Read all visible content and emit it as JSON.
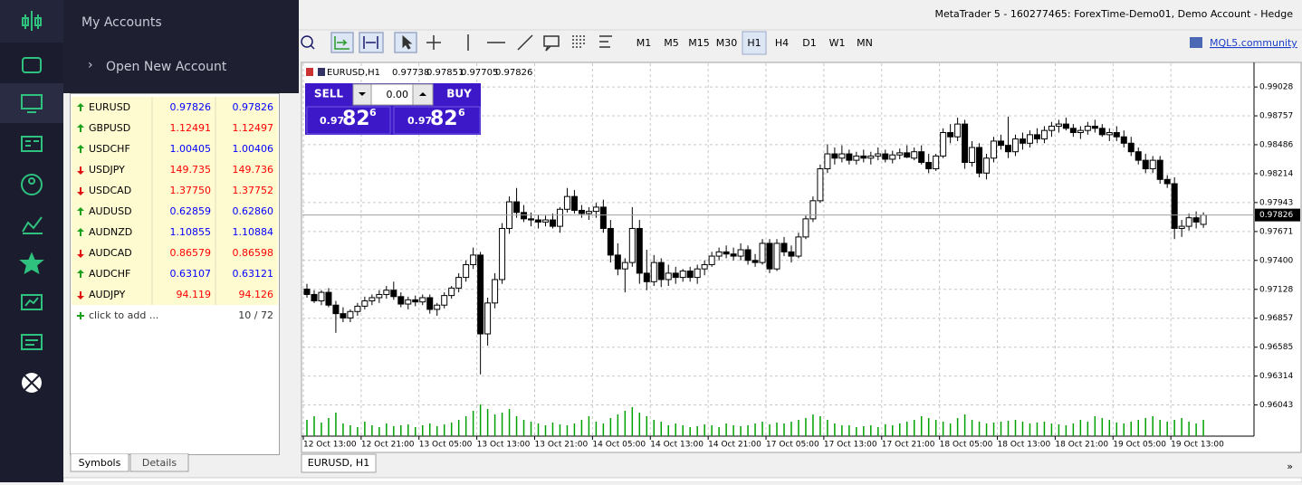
{
  "window_title": "MetaTrader 5 - 160277465: ForexTime-Demo01, Demo Account - Hedge",
  "menu": {
    "title": "My Accounts",
    "item": "Open New Account"
  },
  "toolbar": {
    "timeframes": [
      "M1",
      "M5",
      "M15",
      "M30",
      "H1",
      "H4",
      "D1",
      "W1",
      "MN"
    ],
    "selected_index": 4,
    "link": "MQL5.community"
  },
  "market_watch": {
    "rows": [
      {
        "symbol": "EURUSD",
        "bid": "0.97826",
        "ask": "0.97826",
        "trend": "up",
        "color": "#0000ff"
      },
      {
        "symbol": "GBPUSD",
        "bid": "1.12491",
        "ask": "1.12497",
        "trend": "up",
        "color": "#ff0000"
      },
      {
        "symbol": "USDCHF",
        "bid": "1.00405",
        "ask": "1.00406",
        "trend": "up",
        "color": "#0000ff"
      },
      {
        "symbol": "USDJPY",
        "bid": "149.735",
        "ask": "149.736",
        "trend": "down",
        "color": "#ff0000"
      },
      {
        "symbol": "USDCAD",
        "bid": "1.37750",
        "ask": "1.37752",
        "trend": "down",
        "color": "#ff0000"
      },
      {
        "symbol": "AUDUSD",
        "bid": "0.62859",
        "ask": "0.62860",
        "trend": "up",
        "color": "#0000ff"
      },
      {
        "symbol": "AUDNZD",
        "bid": "1.10855",
        "ask": "1.10884",
        "trend": "up",
        "color": "#0000ff"
      },
      {
        "symbol": "AUDCAD",
        "bid": "0.86579",
        "ask": "0.86598",
        "trend": "down",
        "color": "#ff0000"
      },
      {
        "symbol": "AUDCHF",
        "bid": "0.63107",
        "ask": "0.63121",
        "trend": "up",
        "color": "#0000ff"
      },
      {
        "symbol": "AUDJPY",
        "bid": "94.119",
        "ask": "94.126",
        "trend": "down",
        "color": "#ff0000"
      }
    ],
    "add_label": "click to add ...",
    "count": "10 / 72",
    "tabs": [
      "Symbols",
      "Details"
    ]
  },
  "trade_panel": {
    "sell": "SELL",
    "buy": "BUY",
    "volume": "0.00",
    "sell_price": [
      "0.97",
      "82",
      "6"
    ],
    "buy_price": [
      "0.97",
      "82",
      "6"
    ]
  },
  "chart_tab": "EURUSD, H1",
  "scroll_mark": "»",
  "chart_data": {
    "type": "candlestick",
    "title": "EURUSD,H1",
    "ohlc_header": [
      0.97738,
      0.97851,
      0.97705,
      0.97826
    ],
    "candles": [
      [
        0.9713,
        0.9718,
        0.9705,
        0.9708
      ],
      [
        0.9708,
        0.9712,
        0.97,
        0.9702
      ],
      [
        0.9702,
        0.9712,
        0.9698,
        0.971
      ],
      [
        0.971,
        0.9714,
        0.9696,
        0.9698
      ],
      [
        0.9698,
        0.9702,
        0.9672,
        0.969
      ],
      [
        0.969,
        0.9696,
        0.9682,
        0.9686
      ],
      [
        0.9686,
        0.9694,
        0.9682,
        0.9692
      ],
      [
        0.9692,
        0.97,
        0.9688,
        0.9697
      ],
      [
        0.9697,
        0.9706,
        0.9694,
        0.9702
      ],
      [
        0.9702,
        0.9708,
        0.9698,
        0.9705
      ],
      [
        0.9705,
        0.9712,
        0.97,
        0.9708
      ],
      [
        0.9708,
        0.9716,
        0.9704,
        0.9712
      ],
      [
        0.9712,
        0.972,
        0.9703,
        0.9706
      ],
      [
        0.9706,
        0.971,
        0.9696,
        0.9699
      ],
      [
        0.9699,
        0.9706,
        0.9694,
        0.9703
      ],
      [
        0.9703,
        0.9707,
        0.9697,
        0.9701
      ],
      [
        0.9701,
        0.9708,
        0.9698,
        0.9705
      ],
      [
        0.9705,
        0.9708,
        0.969,
        0.9694
      ],
      [
        0.9694,
        0.97,
        0.9688,
        0.9698
      ],
      [
        0.9698,
        0.971,
        0.9695,
        0.9707
      ],
      [
        0.9707,
        0.9716,
        0.9704,
        0.9714
      ],
      [
        0.9714,
        0.9728,
        0.971,
        0.9724
      ],
      [
        0.9724,
        0.974,
        0.972,
        0.9736
      ],
      [
        0.9736,
        0.9752,
        0.9732,
        0.9745
      ],
      [
        0.9745,
        0.9748,
        0.9633,
        0.9671
      ],
      [
        0.9671,
        0.9705,
        0.966,
        0.97
      ],
      [
        0.97,
        0.9728,
        0.9695,
        0.9722
      ],
      [
        0.9722,
        0.9775,
        0.9718,
        0.977
      ],
      [
        0.977,
        0.98,
        0.9765,
        0.9795
      ],
      [
        0.9795,
        0.9808,
        0.978,
        0.9785
      ],
      [
        0.9785,
        0.9792,
        0.9776,
        0.9779
      ],
      [
        0.9779,
        0.9785,
        0.9772,
        0.9778
      ],
      [
        0.9778,
        0.9783,
        0.977,
        0.9776
      ],
      [
        0.9776,
        0.9782,
        0.9772,
        0.9778
      ],
      [
        0.9778,
        0.9784,
        0.977,
        0.9772
      ],
      [
        0.9772,
        0.979,
        0.9766,
        0.9788
      ],
      [
        0.9788,
        0.9808,
        0.9785,
        0.98
      ],
      [
        0.98,
        0.9806,
        0.9784,
        0.9787
      ],
      [
        0.9787,
        0.9792,
        0.978,
        0.9784
      ],
      [
        0.9784,
        0.979,
        0.9778,
        0.9786
      ],
      [
        0.9786,
        0.9794,
        0.978,
        0.979
      ],
      [
        0.979,
        0.9797,
        0.9766,
        0.977
      ],
      [
        0.977,
        0.9778,
        0.9738,
        0.9745
      ],
      [
        0.9745,
        0.9756,
        0.9726,
        0.9732
      ],
      [
        0.9732,
        0.9742,
        0.971,
        0.9738
      ],
      [
        0.9738,
        0.979,
        0.9734,
        0.977
      ],
      [
        0.977,
        0.9778,
        0.9718,
        0.9728
      ],
      [
        0.9728,
        0.975,
        0.9712,
        0.972
      ],
      [
        0.972,
        0.9745,
        0.9716,
        0.9738
      ],
      [
        0.9738,
        0.9742,
        0.9715,
        0.9722
      ],
      [
        0.9722,
        0.9736,
        0.9716,
        0.9728
      ],
      [
        0.9728,
        0.9734,
        0.9718,
        0.9724
      ],
      [
        0.9724,
        0.9732,
        0.972,
        0.973
      ],
      [
        0.973,
        0.9734,
        0.972,
        0.9724
      ],
      [
        0.9724,
        0.9736,
        0.9718,
        0.9732
      ],
      [
        0.9732,
        0.974,
        0.9726,
        0.9736
      ],
      [
        0.9736,
        0.9748,
        0.9734,
        0.9744
      ],
      [
        0.9744,
        0.9752,
        0.974,
        0.9748
      ],
      [
        0.9748,
        0.9754,
        0.9742,
        0.9746
      ],
      [
        0.9746,
        0.9752,
        0.974,
        0.9744
      ],
      [
        0.9744,
        0.9756,
        0.974,
        0.975
      ],
      [
        0.975,
        0.9754,
        0.9736,
        0.974
      ],
      [
        0.974,
        0.9746,
        0.9734,
        0.9738
      ],
      [
        0.9738,
        0.976,
        0.9736,
        0.9756
      ],
      [
        0.9756,
        0.976,
        0.9728,
        0.9732
      ],
      [
        0.9732,
        0.976,
        0.973,
        0.9756
      ],
      [
        0.9756,
        0.9762,
        0.9744,
        0.9748
      ],
      [
        0.9748,
        0.9754,
        0.9738,
        0.9744
      ],
      [
        0.9744,
        0.9766,
        0.9742,
        0.9762
      ],
      [
        0.9762,
        0.9782,
        0.976,
        0.9779
      ],
      [
        0.9779,
        0.98,
        0.9776,
        0.9796
      ],
      [
        0.9796,
        0.983,
        0.9794,
        0.9826
      ],
      [
        0.9826,
        0.9849,
        0.9822,
        0.984
      ],
      [
        0.984,
        0.9846,
        0.983,
        0.9836
      ],
      [
        0.9836,
        0.9848,
        0.9832,
        0.984
      ],
      [
        0.984,
        0.9844,
        0.983,
        0.9834
      ],
      [
        0.9834,
        0.9842,
        0.983,
        0.9838
      ],
      [
        0.9838,
        0.9844,
        0.9832,
        0.9836
      ],
      [
        0.9836,
        0.9842,
        0.983,
        0.9838
      ],
      [
        0.9838,
        0.9846,
        0.9834,
        0.984
      ],
      [
        0.984,
        0.9844,
        0.9832,
        0.9835
      ],
      [
        0.9835,
        0.9843,
        0.9831,
        0.9839
      ],
      [
        0.9839,
        0.9845,
        0.9835,
        0.9841
      ],
      [
        0.9841,
        0.9848,
        0.9836,
        0.9837
      ],
      [
        0.9836,
        0.9846,
        0.9834,
        0.9842
      ],
      [
        0.9842,
        0.9848,
        0.983,
        0.9832
      ],
      [
        0.9832,
        0.984,
        0.9822,
        0.9826
      ],
      [
        0.9826,
        0.984,
        0.9824,
        0.9838
      ],
      [
        0.9838,
        0.9864,
        0.9836,
        0.986
      ],
      [
        0.986,
        0.9868,
        0.985,
        0.9856
      ],
      [
        0.9856,
        0.9874,
        0.9852,
        0.9868
      ],
      [
        0.9868,
        0.9872,
        0.9826,
        0.9832
      ],
      [
        0.9832,
        0.9852,
        0.9828,
        0.9846
      ],
      [
        0.9846,
        0.985,
        0.9818,
        0.9822
      ],
      [
        0.9822,
        0.984,
        0.9816,
        0.9836
      ],
      [
        0.9836,
        0.9856,
        0.9832,
        0.9852
      ],
      [
        0.9852,
        0.9858,
        0.9844,
        0.9848
      ],
      [
        0.9848,
        0.9875,
        0.9836,
        0.9842
      ],
      [
        0.9842,
        0.9858,
        0.9838,
        0.9854
      ],
      [
        0.9854,
        0.986,
        0.9844,
        0.985
      ],
      [
        0.985,
        0.9862,
        0.9846,
        0.9858
      ],
      [
        0.9858,
        0.9864,
        0.985,
        0.9854
      ],
      [
        0.9854,
        0.9866,
        0.985,
        0.9862
      ],
      [
        0.9862,
        0.987,
        0.9856,
        0.9866
      ],
      [
        0.9866,
        0.9872,
        0.986,
        0.9868
      ],
      [
        0.9868,
        0.9874,
        0.9862,
        0.9864
      ],
      [
        0.9864,
        0.9868,
        0.9856,
        0.986
      ],
      [
        0.986,
        0.9866,
        0.9854,
        0.9862
      ],
      [
        0.9862,
        0.987,
        0.9858,
        0.9866
      ],
      [
        0.9866,
        0.9872,
        0.986,
        0.9864
      ],
      [
        0.9864,
        0.9868,
        0.9856,
        0.9858
      ],
      [
        0.9858,
        0.9864,
        0.9852,
        0.986
      ],
      [
        0.986,
        0.9866,
        0.9852,
        0.9856
      ],
      [
        0.9856,
        0.9862,
        0.9846,
        0.985
      ],
      [
        0.985,
        0.9856,
        0.9838,
        0.9842
      ],
      [
        0.9842,
        0.9846,
        0.983,
        0.9834
      ],
      [
        0.9834,
        0.984,
        0.9822,
        0.9826
      ],
      [
        0.9826,
        0.9838,
        0.9822,
        0.9834
      ],
      [
        0.9834,
        0.9838,
        0.9812,
        0.9816
      ],
      [
        0.9816,
        0.982,
        0.9808,
        0.9812
      ],
      [
        0.9812,
        0.9818,
        0.976,
        0.977
      ],
      [
        0.977,
        0.9778,
        0.9762,
        0.9772
      ],
      [
        0.9772,
        0.9784,
        0.9768,
        0.978
      ],
      [
        0.978,
        0.9786,
        0.977,
        0.9776
      ],
      [
        0.97738,
        0.97851,
        0.97705,
        0.97826
      ]
    ],
    "volumes": [
      18,
      22,
      15,
      20,
      26,
      14,
      12,
      10,
      16,
      12,
      10,
      14,
      11,
      12,
      13,
      10,
      12,
      14,
      11,
      13,
      15,
      18,
      22,
      28,
      35,
      30,
      24,
      26,
      30,
      22,
      18,
      16,
      14,
      12,
      15,
      13,
      12,
      14,
      18,
      22,
      16,
      14,
      20,
      24,
      28,
      32,
      26,
      22,
      18,
      16,
      12,
      14,
      12,
      10,
      11,
      13,
      12,
      10,
      14,
      12,
      11,
      12,
      14,
      16,
      13,
      15,
      14,
      16,
      18,
      20,
      24,
      22,
      18,
      14,
      12,
      12,
      10,
      11,
      12,
      10,
      13,
      12,
      14,
      16,
      18,
      22,
      20,
      18,
      16,
      14,
      20,
      24,
      18,
      16,
      14,
      15,
      16,
      17,
      18,
      16,
      14,
      15,
      16,
      14,
      13,
      12,
      14,
      18,
      16,
      22,
      20,
      18,
      15,
      14,
      16,
      18,
      20,
      22,
      18,
      16,
      18,
      20,
      16,
      14,
      18
    ],
    "xlim": [
      -0.5,
      131
    ],
    "xticks": [
      {
        "value": 0,
        "label": "12 Oct 13:00"
      },
      {
        "value": 8,
        "label": "12 Oct 21:00"
      },
      {
        "value": 16,
        "label": "13 Oct 05:00"
      },
      {
        "value": 24,
        "label": "13 Oct 13:00"
      },
      {
        "value": 32,
        "label": "13 Oct 21:00"
      },
      {
        "value": 40,
        "label": "14 Oct 05:00"
      },
      {
        "value": 48,
        "label": "14 Oct 13:00"
      },
      {
        "value": 56,
        "label": "14 Oct 21:00"
      },
      {
        "value": 64,
        "label": "17 Oct 05:00"
      },
      {
        "value": 72,
        "label": "17 Oct 13:00"
      },
      {
        "value": 80,
        "label": "17 Oct 21:00"
      },
      {
        "value": 88,
        "label": "18 Oct 05:00"
      },
      {
        "value": 96,
        "label": "18 Oct 13:00"
      },
      {
        "value": 104,
        "label": "18 Oct 21:00"
      },
      {
        "value": 112,
        "label": "19 Oct 05:00"
      },
      {
        "value": 120,
        "label": "19 Oct 13:00"
      }
    ],
    "ylim": [
      0.9575,
      0.9925
    ],
    "yticks": [
      0.99028,
      0.98757,
      0.98486,
      0.98214,
      0.97943,
      0.97671,
      {
        "value": 0.974,
        "label": "0.97400"
      },
      0.97128,
      0.96857,
      0.96585,
      0.96314,
      0.96043
    ],
    "current_price": 0.97826,
    "grid": true,
    "up_color": "#ffffff",
    "down_color": "#000000",
    "volume_color": "#00a000"
  }
}
